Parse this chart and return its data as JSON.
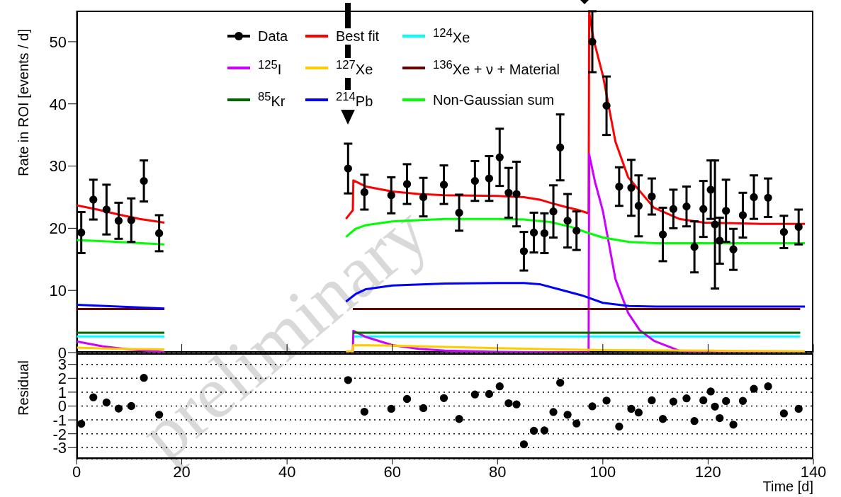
{
  "chart_data": [
    {
      "type": "line",
      "ylabel": "Rate in ROI [events / d]",
      "xlim": [
        0,
        140
      ],
      "xticks": [
        0,
        20,
        40,
        60,
        80,
        100,
        120,
        140
      ],
      "ylim": [
        0,
        55
      ],
      "yticks": [
        0,
        10,
        20,
        30,
        40,
        50
      ],
      "tick_labels": "y",
      "legend": "top",
      "line_style": "solid",
      "annotations": [
        "preliminary"
      ],
      "series": [
        {
          "name": "Data",
          "type": "scatter",
          "marker": "circle",
          "color": "#000000",
          "x": [
            0.9,
            3.2,
            5.7,
            8.0,
            10.4,
            12.8,
            15.7,
            51.6,
            54.7,
            59.8,
            62.8,
            65.9,
            69.8,
            72.7,
            75.7,
            78.4,
            80.4,
            82.1,
            83.6,
            85.0,
            86.9,
            88.9,
            90.6,
            91.9,
            93.3,
            95.0,
            98.0,
            100.7,
            103.1,
            105.4,
            106.8,
            109.3,
            111.4,
            113.4,
            115.9,
            117.4,
            119.1,
            120.5,
            121.3,
            122.2,
            123.4,
            124.8,
            126.6,
            128.7,
            131.4,
            134.4,
            137.2
          ],
          "values": [
            19.3,
            24.6,
            23.0,
            21.2,
            21.3,
            27.6,
            19.2,
            29.6,
            25.8,
            25.3,
            27.1,
            25.0,
            27.0,
            22.5,
            27.6,
            28.0,
            31.4,
            25.7,
            25.5,
            16.3,
            19.3,
            19.2,
            22.7,
            33.0,
            21.2,
            19.6,
            50.0,
            39.7,
            26.7,
            26.5,
            23.6,
            25.1,
            19.0,
            23.1,
            23.5,
            17.0,
            23.1,
            26.2,
            20.6,
            18.0,
            22.8,
            16.6,
            22.1,
            25.0,
            24.9,
            19.4,
            20.2
          ],
          "errors": [
            3.3,
            3.2,
            4.0,
            2.9,
            3.5,
            3.3,
            2.9,
            4.0,
            2.8,
            2.9,
            3.2,
            3.1,
            3.1,
            2.9,
            3.2,
            3.6,
            4.6,
            4.0,
            5.2,
            3.1,
            3.2,
            3.2,
            4.2,
            5.3,
            4.3,
            3.1,
            4.9,
            4.7,
            3.1,
            4.5,
            4.9,
            2.9,
            4.3,
            3.1,
            3.2,
            4.1,
            4.5,
            4.7,
            10.3,
            3.7,
            5.0,
            3.3,
            3.6,
            3.5,
            3.1,
            2.6,
            2.8
          ]
        },
        {
          "name": "Best fit",
          "type": "line",
          "color": "#ff0000",
          "x": [
            0,
            4,
            8,
            12,
            16.7,
            17,
            51.2,
            52.5,
            52.6,
            55,
            60,
            65,
            70,
            80,
            85,
            88,
            90,
            93,
            95,
            97.3,
            97.4,
            98.2,
            100,
            102.4,
            104.8,
            109.7,
            114.5,
            119.3,
            125,
            130,
            138.4
          ],
          "values": [
            23.7,
            23.0,
            22.2,
            21.5,
            20.9,
            null,
            21.5,
            22.9,
            27.7,
            26.7,
            25.9,
            25.5,
            25.3,
            25.2,
            25.0,
            24.6,
            24.1,
            23.4,
            23.0,
            22.4,
            54.8,
            50.5,
            44.6,
            33.9,
            28.2,
            23.3,
            21.5,
            20.9,
            20.8,
            20.7,
            20.7
          ]
        },
        {
          "name": "$^{124}$Xe",
          "type": "line",
          "color": "#00ffff",
          "x": [
            0,
            16.7,
            17,
            52.5,
            137.5
          ],
          "values": [
            2.6,
            2.6,
            null,
            2.6,
            2.6
          ]
        },
        {
          "name": "$^{125}$I",
          "type": "line",
          "color": "#cc00ff",
          "x": [
            0,
            5,
            10,
            16.7,
            17,
            51.2,
            52.5,
            52.6,
            55,
            60,
            65,
            70,
            80,
            97.3,
            97.4,
            98.5,
            100,
            102.4,
            104.8,
            107,
            109.7,
            114.5,
            120,
            138.4
          ],
          "values": [
            1.8,
            1.0,
            0.5,
            0.1,
            null,
            0,
            0,
            3.5,
            2.5,
            1.2,
            0.6,
            0.3,
            0.1,
            0,
            31.9,
            27.5,
            22.8,
            11.8,
            6.4,
            3.6,
            1.9,
            0.3,
            0,
            0
          ]
        },
        {
          "name": "$^{127}$Xe",
          "type": "line",
          "color": "#ffcc00",
          "x": [
            0,
            8,
            16.7,
            17,
            51.2,
            52.5,
            52.6,
            60,
            80,
            100,
            120,
            138.4
          ],
          "values": [
            0.8,
            0.6,
            0.5,
            null,
            0.2,
            0.2,
            1.2,
            1.1,
            0.7,
            0.4,
            0.3,
            0.2
          ]
        },
        {
          "name": "$^{136}$Xe + ν + Material",
          "type": "line",
          "color": "#660000",
          "x": [
            0,
            16.7,
            17,
            52.5,
            137.5
          ],
          "values": [
            7.0,
            7.0,
            null,
            7.0,
            7.0
          ]
        },
        {
          "name": "$^{85}$Kr",
          "type": "line",
          "color": "#006600",
          "x": [
            0,
            16.7,
            17,
            52.5,
            137.5
          ],
          "values": [
            3.2,
            3.2,
            null,
            3.2,
            3.2
          ]
        },
        {
          "name": "$^{214}$Pb",
          "type": "line",
          "color": "#0000ff",
          "x": [
            0,
            16.7,
            17,
            51.2,
            53,
            55,
            60,
            70,
            80,
            85,
            88,
            92,
            96,
            100,
            105,
            110,
            138.4
          ],
          "values": [
            7.7,
            7.1,
            null,
            8.2,
            9.4,
            10.2,
            10.8,
            11.1,
            11.2,
            11.2,
            11.0,
            10.1,
            9.2,
            8.0,
            7.5,
            7.4,
            7.4
          ]
        },
        {
          "name": "Non-Gaussian sum",
          "type": "line",
          "color": "#00ff00",
          "x": [
            0,
            8,
            16.7,
            17,
            51.2,
            53,
            55,
            60,
            70,
            80,
            85,
            90,
            94,
            97,
            100,
            105,
            110,
            120,
            138.4
          ],
          "values": [
            18.1,
            17.8,
            17.4,
            null,
            18.6,
            19.9,
            20.5,
            21.1,
            21.5,
            21.5,
            21.4,
            21.0,
            20.2,
            19.3,
            18.5,
            17.8,
            17.6,
            17.6,
            17.6
          ]
        }
      ]
    },
    {
      "type": "scatter",
      "ylabel": "Residual",
      "xlabel": "Time [d]",
      "xlim": [
        0,
        140
      ],
      "xticks": [
        0,
        20,
        40,
        60,
        80,
        100,
        120,
        140
      ],
      "ylim": [
        -3.8,
        3.8
      ],
      "yticks": [
        -3,
        -2,
        -1,
        0,
        1,
        2,
        3
      ],
      "grid": "y",
      "marker": "circle",
      "color": "#000000",
      "x": [
        0.9,
        3.2,
        5.7,
        8.0,
        10.4,
        12.8,
        15.7,
        51.6,
        54.7,
        59.8,
        62.8,
        65.9,
        69.8,
        72.7,
        75.7,
        78.4,
        80.4,
        82.1,
        83.6,
        85.0,
        86.9,
        88.9,
        90.6,
        91.9,
        93.3,
        95.0,
        98.0,
        100.7,
        103.1,
        105.4,
        106.8,
        109.3,
        111.4,
        113.4,
        115.9,
        117.4,
        119.1,
        120.5,
        121.3,
        122.2,
        123.4,
        124.8,
        126.6,
        128.7,
        131.4,
        134.4,
        137.2
      ],
      "values": [
        -1.28,
        0.63,
        0.26,
        -0.18,
        0.0,
        2.03,
        -0.63,
        1.87,
        -0.41,
        -0.2,
        0.51,
        -0.15,
        0.57,
        -0.93,
        0.83,
        0.87,
        1.42,
        0.2,
        0.12,
        -2.76,
        -1.78,
        -1.76,
        -0.43,
        1.68,
        -0.63,
        -1.26,
        -0.02,
        0.39,
        -1.48,
        -0.2,
        -0.47,
        0.41,
        -0.93,
        0.32,
        0.55,
        -1.08,
        0.41,
        1.05,
        -0.04,
        -0.87,
        0.36,
        -1.34,
        0.37,
        1.24,
        1.42,
        -0.53,
        -0.2
      ]
    }
  ]
}
